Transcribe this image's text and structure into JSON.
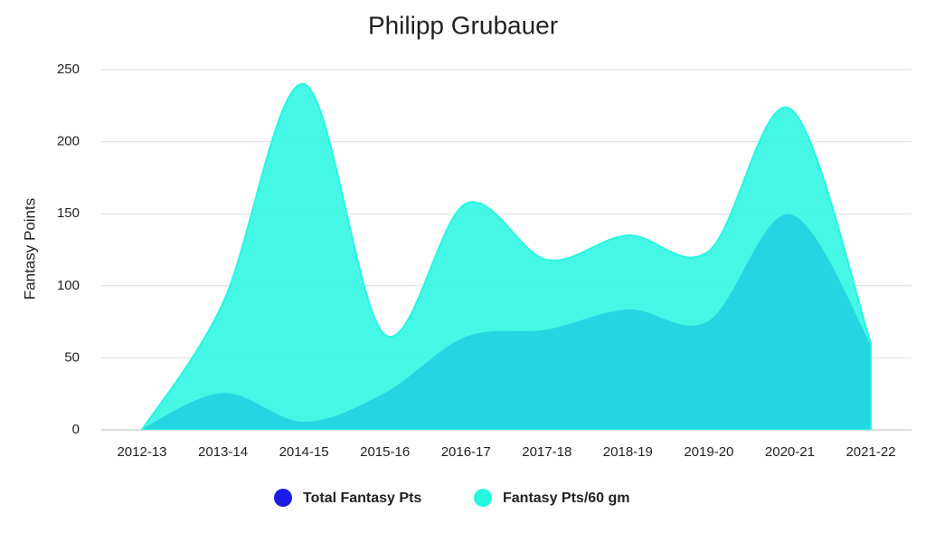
{
  "chart_data": {
    "type": "area",
    "title": "Philipp Grubauer",
    "y_label": "Fantasy Points",
    "categories": [
      "2012-13",
      "2013-14",
      "2014-15",
      "2015-16",
      "2016-17",
      "2017-18",
      "2018-19",
      "2019-20",
      "2020-21",
      "2021-22"
    ],
    "series": [
      {
        "name": "Total Fantasy Pts",
        "color": "#1c1ce8",
        "values": [
          0,
          25,
          5,
          25,
          64,
          69,
          83,
          75,
          149,
          58
        ]
      },
      {
        "name": "Fantasy Pts/60 gm",
        "color": "#25f7e0",
        "values": [
          0,
          88,
          240,
          66,
          157,
          118,
          135,
          124,
          223,
          60
        ]
      }
    ],
    "ylim": [
      0,
      250
    ],
    "yticks": [
      0,
      50,
      100,
      150,
      200,
      250
    ],
    "grid": true
  }
}
